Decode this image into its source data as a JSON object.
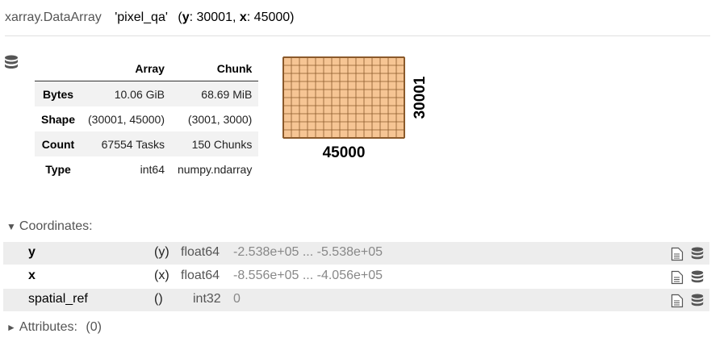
{
  "header": {
    "class_name": "xarray.DataArray",
    "var_name": "'pixel_qa'",
    "dims_open": "(",
    "dim1_name": "y",
    "dim1_value": ": 30001, ",
    "dim2_name": "x",
    "dim2_value": ": 45000)"
  },
  "summary": {
    "col_array": "Array",
    "col_chunk": "Chunk",
    "rows": [
      {
        "label": "Bytes",
        "array": "10.06 GiB",
        "chunk": "68.69 MiB"
      },
      {
        "label": "Shape",
        "array": "(30001, 45000)",
        "chunk": "(3001, 3000)"
      },
      {
        "label": "Count",
        "array": "67554 Tasks",
        "chunk": "150 Chunks"
      },
      {
        "label": "Type",
        "array": "int64",
        "chunk": "numpy.ndarray"
      }
    ]
  },
  "chunk_diagram": {
    "x_label": "45000",
    "y_label": "30001",
    "cols": 15,
    "rows": 10,
    "fill_color": "#f6c594",
    "line_color": "#8b5a2b"
  },
  "coordinates": {
    "toggle_label": "Coordinates:",
    "items": [
      {
        "name": "y",
        "dims": "(y)",
        "dtype": "float64",
        "preview": "-2.538e+05 ... -5.538e+05"
      },
      {
        "name": "x",
        "dims": "(x)",
        "dtype": "float64",
        "preview": "-8.556e+05 ... -4.056e+05"
      },
      {
        "name": "spatial_ref",
        "dims": "()",
        "dtype": "int32",
        "preview": "0"
      }
    ]
  },
  "attributes": {
    "toggle_label": "Attributes:",
    "count": "(0)"
  }
}
